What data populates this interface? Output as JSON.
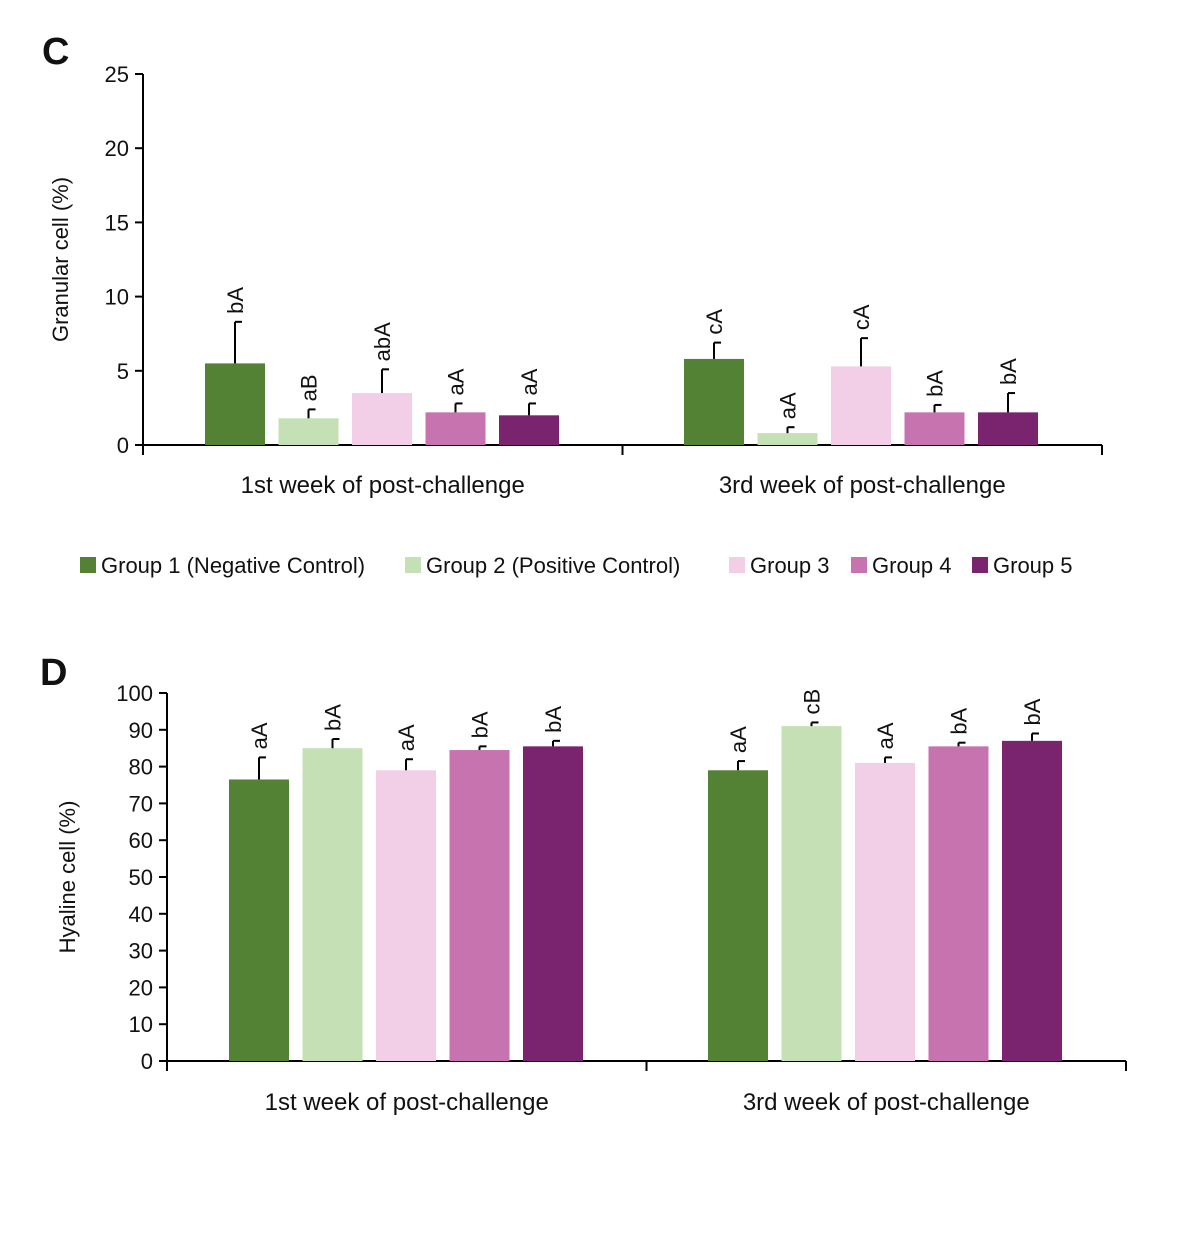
{
  "legend": [
    {
      "label": "Group 1 (Negative Control)",
      "color": "#548235"
    },
    {
      "label": "Group 2 (Positive Control)",
      "color": "#c5e0b4"
    },
    {
      "label": "Group 3",
      "color": "#f2cfe6"
    },
    {
      "label": "Group 4",
      "color": "#c773b0"
    },
    {
      "label": "Group 5",
      "color": "#7a2470"
    }
  ],
  "chart_data": [
    {
      "panel": "C",
      "type": "bar",
      "ylabel": "Granular cell (%)",
      "ylim": [
        0,
        25
      ],
      "yticks": [
        0,
        5,
        10,
        15,
        20,
        25
      ],
      "categories": [
        "1st week of post-challenge",
        "3rd week of post-challenge"
      ],
      "series": [
        {
          "name": "Group 1 (Negative Control)",
          "values": [
            5.5,
            5.8
          ],
          "errors": [
            2.8,
            1.1
          ],
          "labels": [
            "bA",
            "cA"
          ]
        },
        {
          "name": "Group 2 (Positive Control)",
          "values": [
            1.8,
            0.8
          ],
          "errors": [
            0.6,
            0.4
          ],
          "labels": [
            "aB",
            "aA"
          ]
        },
        {
          "name": "Group 3",
          "values": [
            3.5,
            5.3
          ],
          "errors": [
            1.6,
            1.9
          ],
          "labels": [
            "abA",
            "cA"
          ]
        },
        {
          "name": "Group 4",
          "values": [
            2.2,
            2.2
          ],
          "errors": [
            0.6,
            0.5
          ],
          "labels": [
            "aA",
            "bA"
          ]
        },
        {
          "name": "Group 5",
          "values": [
            2.0,
            2.2
          ],
          "errors": [
            0.8,
            1.3
          ],
          "labels": [
            "aA",
            "bA"
          ]
        }
      ]
    },
    {
      "panel": "D",
      "type": "bar",
      "ylabel": "Hyaline cell (%)",
      "ylim": [
        0,
        100
      ],
      "yticks": [
        0,
        10,
        20,
        30,
        40,
        50,
        60,
        70,
        80,
        90,
        100
      ],
      "categories": [
        "1st week of post-challenge",
        "3rd week of post-challenge"
      ],
      "series": [
        {
          "name": "Group 1 (Negative Control)",
          "values": [
            76.5,
            79
          ],
          "errors": [
            6,
            2.5
          ],
          "labels": [
            "aA",
            "aA"
          ]
        },
        {
          "name": "Group 2 (Positive Control)",
          "values": [
            85,
            91
          ],
          "errors": [
            2.5,
            1
          ],
          "labels": [
            "bA",
            "cB"
          ]
        },
        {
          "name": "Group 3",
          "values": [
            79,
            81
          ],
          "errors": [
            3,
            1.5
          ],
          "labels": [
            "aA",
            "aA"
          ]
        },
        {
          "name": "Group 4",
          "values": [
            84.5,
            85.5
          ],
          "errors": [
            1,
            1
          ],
          "labels": [
            "bA",
            "bA"
          ]
        },
        {
          "name": "Group 5",
          "values": [
            85.5,
            87
          ],
          "errors": [
            1.5,
            2
          ],
          "labels": [
            "bA",
            "bA"
          ]
        }
      ]
    }
  ]
}
